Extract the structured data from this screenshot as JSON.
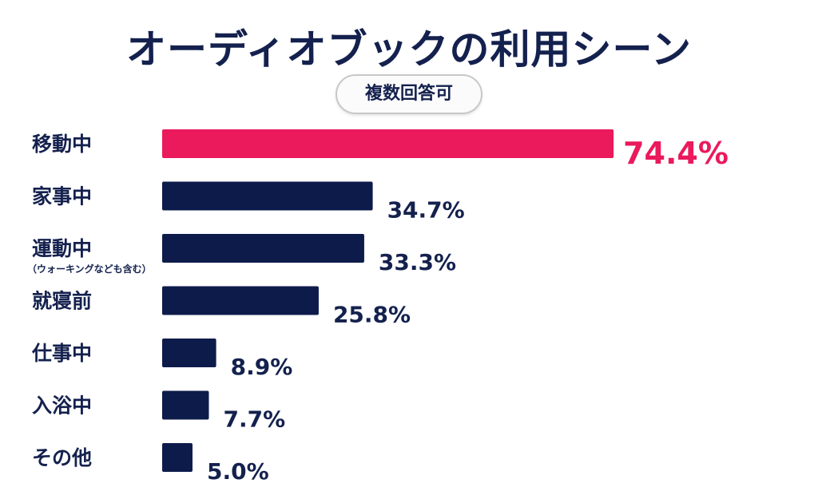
{
  "title": "オーディオブックの利用シーン",
  "badge": "複数回答可",
  "colors": {
    "primary": "#0d1b4b",
    "highlight": "#ea1a5c",
    "text": "#14214e"
  },
  "chart_data": {
    "type": "bar",
    "orientation": "horizontal",
    "title": "オーディオブックの利用シーン",
    "subtitle": "複数回答可",
    "unit": "%",
    "categories": [
      "移動中",
      "家事中",
      "運動中",
      "就寝前",
      "仕事中",
      "入浴中",
      "その他"
    ],
    "category_notes": [
      "",
      "",
      "（ウォーキングなども含む）",
      "",
      "",
      "",
      ""
    ],
    "values": [
      74.4,
      34.7,
      33.3,
      25.8,
      8.9,
      7.7,
      5.0
    ],
    "value_labels": [
      "74.4%",
      "34.7%",
      "33.3%",
      "25.8%",
      "8.9%",
      "7.7%",
      "5.0%"
    ],
    "highlight_index": 0,
    "xlim": [
      0,
      100
    ],
    "grid": false,
    "legend": "none"
  }
}
